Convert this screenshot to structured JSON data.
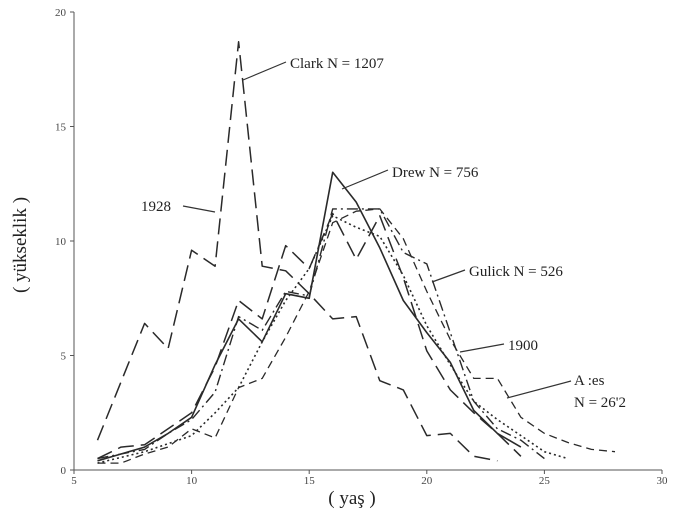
{
  "chart_data": {
    "type": "line",
    "title": "",
    "xlabel": "( yaş )",
    "ylabel": "( yükseklik )",
    "xlim": [
      5,
      30
    ],
    "ylim": [
      0,
      20
    ],
    "x_ticks": [
      "5",
      "10",
      "15",
      "20",
      "25",
      "30"
    ],
    "y_ticks": [
      "0",
      "5",
      "10",
      "15",
      "20"
    ],
    "grid": false,
    "series": [
      {
        "name": "1928",
        "style": "long-dash",
        "x": [
          6,
          8,
          9,
          10,
          11,
          12,
          13,
          14,
          15,
          16,
          17,
          18,
          19,
          20,
          21,
          22,
          23
        ],
        "y": [
          1.3,
          6.4,
          5.3,
          9.6,
          8.9,
          18.7,
          8.9,
          8.7,
          7.7,
          6.6,
          6.7,
          3.9,
          3.5,
          1.5,
          1.6,
          0.6,
          0.4
        ]
      },
      {
        "name": "Clark N = 1207",
        "style": "long-dash",
        "x": [
          6,
          7,
          8,
          9,
          10,
          11,
          12,
          13,
          14,
          15,
          16,
          17,
          18,
          19,
          20,
          21,
          22,
          23,
          24
        ],
        "y": [
          0.5,
          1.0,
          1.1,
          1.8,
          2.5,
          4.5,
          7.4,
          6.6,
          9.8,
          8.8,
          11.2,
          9.2,
          11.1,
          8.4,
          5.2,
          3.5,
          2.5,
          1.6,
          0.6
        ]
      },
      {
        "name": "Drew N = 756",
        "style": "solid",
        "x": [
          6,
          7,
          8,
          9,
          10,
          11,
          12,
          13,
          14,
          15,
          16,
          17,
          18,
          19,
          20,
          21,
          22,
          23,
          24
        ],
        "y": [
          0.4,
          0.7,
          1.0,
          1.6,
          2.3,
          4.6,
          6.6,
          5.6,
          7.7,
          7.5,
          13.0,
          11.7,
          9.7,
          7.4,
          6.0,
          4.7,
          2.6,
          1.6,
          1.0
        ]
      },
      {
        "name": "Gulick N = 526",
        "style": "dash-dot",
        "x": [
          6,
          7,
          8,
          9,
          10,
          11,
          12,
          13,
          14,
          15,
          16,
          17,
          18,
          19,
          20,
          21,
          22,
          23,
          24,
          25
        ],
        "y": [
          0.5,
          0.7,
          0.9,
          1.6,
          2.2,
          3.4,
          6.7,
          6.1,
          7.8,
          7.6,
          11.4,
          11.4,
          11.4,
          9.5,
          9.0,
          6.0,
          3.0,
          1.8,
          1.3,
          0.5
        ]
      },
      {
        "name": "1900",
        "style": "dotted",
        "x": [
          6,
          8,
          10,
          11,
          12,
          13,
          14,
          15,
          16,
          17,
          18,
          19,
          20,
          21,
          22,
          23,
          24,
          25,
          26
        ],
        "y": [
          0.3,
          0.8,
          1.5,
          2.5,
          3.6,
          5.6,
          7.4,
          8.8,
          11.1,
          10.6,
          10.2,
          8.5,
          6.3,
          4.6,
          3.0,
          2.2,
          1.5,
          0.8,
          0.5
        ]
      },
      {
        "name": "Ames N = 2612",
        "style": "short-dash",
        "x": [
          6,
          7,
          8,
          9,
          10,
          11,
          12,
          13,
          14,
          15,
          16,
          17,
          18,
          19,
          20,
          21,
          22,
          23,
          24,
          25,
          26,
          27,
          28
        ],
        "y": [
          0.3,
          0.3,
          0.7,
          1.0,
          1.8,
          1.4,
          3.6,
          4.0,
          5.8,
          7.8,
          10.8,
          11.3,
          11.4,
          10.1,
          7.8,
          5.7,
          4.0,
          4.0,
          2.3,
          1.6,
          1.2,
          0.9,
          0.8
        ]
      }
    ],
    "annotations": [
      {
        "text": "Clark N = 1207"
      },
      {
        "text": "1928"
      },
      {
        "text": "Drew  N = 756"
      },
      {
        "text": "Gulick N = 526"
      },
      {
        "text": "1900"
      },
      {
        "text": "A  :es"
      },
      {
        "text": "N  = 26'2"
      }
    ]
  }
}
